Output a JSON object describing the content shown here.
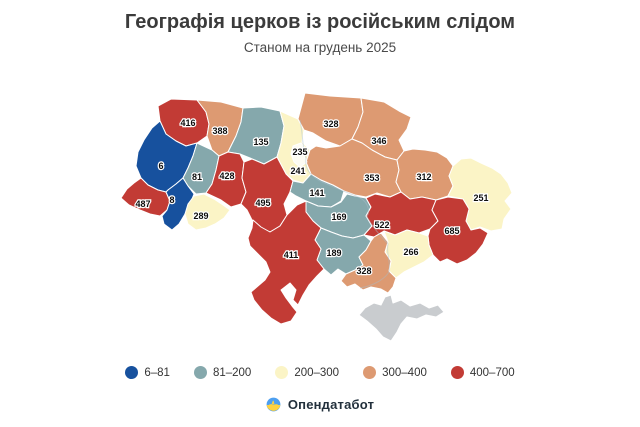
{
  "header": {
    "title": "Географія церков із російським слідом",
    "subtitle": "Станом на грудень 2025"
  },
  "chart_data": {
    "type": "heatmap",
    "subtype": "choropleth-map-ukraine",
    "title": "Географія церков із російським слідом",
    "subtitle": "Станом на грудень 2025",
    "legend_position": "bottom",
    "regions": [
      {
        "id": "volyn",
        "value": 416,
        "bucket": "400–700"
      },
      {
        "id": "rivne",
        "value": 388,
        "bucket": "300–400"
      },
      {
        "id": "zhytomyr",
        "value": 135,
        "bucket": "81–200"
      },
      {
        "id": "kyiv-region",
        "value": 241,
        "bucket": "200–300"
      },
      {
        "id": "chernihiv",
        "value": 328,
        "bucket": "300–400"
      },
      {
        "id": "sumy",
        "value": 346,
        "bucket": "300–400"
      },
      {
        "id": "lviv",
        "value": 6,
        "bucket": "6–81"
      },
      {
        "id": "ternopil",
        "value": 81,
        "bucket": "81–200"
      },
      {
        "id": "khmelnytskyi",
        "value": 428,
        "bucket": "400–700"
      },
      {
        "id": "vinnytsia",
        "value": 495,
        "bucket": "400–700"
      },
      {
        "id": "cherkasy",
        "value": 141,
        "bucket": "81–200"
      },
      {
        "id": "poltava",
        "value": 353,
        "bucket": "300–400"
      },
      {
        "id": "kharkiv",
        "value": 312,
        "bucket": "300–400"
      },
      {
        "id": "luhansk",
        "value": 251,
        "bucket": "200–300"
      },
      {
        "id": "zakarpattia",
        "value": 487,
        "bucket": "400–700"
      },
      {
        "id": "ivano-frankivsk",
        "value": 8,
        "bucket": "6–81"
      },
      {
        "id": "chernivtsi",
        "value": 289,
        "bucket": "200–300"
      },
      {
        "id": "kirovohrad",
        "value": 169,
        "bucket": "81–200"
      },
      {
        "id": "dnipropetrovsk",
        "value": 522,
        "bucket": "400–700"
      },
      {
        "id": "donetsk",
        "value": 685,
        "bucket": "400–700"
      },
      {
        "id": "zaporizhzhia",
        "value": 266,
        "bucket": "200–300"
      },
      {
        "id": "mykolaiv",
        "value": 189,
        "bucket": "81–200"
      },
      {
        "id": "kherson",
        "value": 328,
        "bucket": "300–400"
      },
      {
        "id": "odesa",
        "value": 411,
        "bucket": "400–700"
      },
      {
        "id": "kyiv-city",
        "value": 235,
        "bucket": "200–300"
      },
      {
        "id": "crimea",
        "value": null,
        "bucket": "no-data"
      }
    ],
    "legend": [
      {
        "label": "6–81",
        "color": "#17519e"
      },
      {
        "label": "81–200",
        "color": "#85a8ac"
      },
      {
        "label": "200–300",
        "color": "#fbf4c6"
      },
      {
        "label": "300–400",
        "color": "#dd9a72"
      },
      {
        "label": "400–700",
        "color": "#c23b35"
      }
    ],
    "no_data_color": "#c9cccf"
  },
  "footer": {
    "brand": "Опендатабот"
  }
}
